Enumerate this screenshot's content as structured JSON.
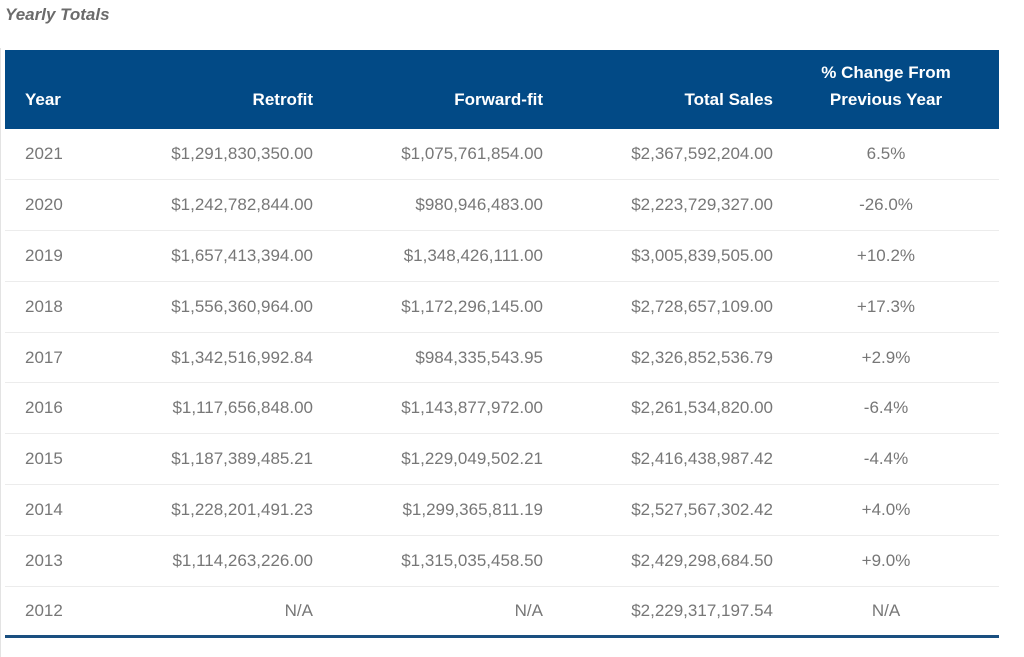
{
  "title": "Yearly Totals",
  "table": {
    "headers": {
      "year": "Year",
      "retrofit": "Retrofit",
      "forward_fit": "Forward-fit",
      "total_sales": "Total Sales",
      "pct_change_line1": "% Change From",
      "pct_change_line2": "Previous Year"
    },
    "rows": [
      {
        "year": "2021",
        "retrofit": "$1,291,830,350.00",
        "forward_fit": "$1,075,761,854.00",
        "total_sales": "$2,367,592,204.00",
        "pct_change": "6.5%"
      },
      {
        "year": "2020",
        "retrofit": "$1,242,782,844.00",
        "forward_fit": "$980,946,483.00",
        "total_sales": "$2,223,729,327.00",
        "pct_change": "-26.0%"
      },
      {
        "year": "2019",
        "retrofit": "$1,657,413,394.00",
        "forward_fit": "$1,348,426,111.00",
        "total_sales": "$3,005,839,505.00",
        "pct_change": "+10.2%"
      },
      {
        "year": "2018",
        "retrofit": "$1,556,360,964.00",
        "forward_fit": "$1,172,296,145.00",
        "total_sales": "$2,728,657,109.00",
        "pct_change": "+17.3%"
      },
      {
        "year": "2017",
        "retrofit": "$1,342,516,992.84",
        "forward_fit": "$984,335,543.95",
        "total_sales": "$2,326,852,536.79",
        "pct_change": "+2.9%"
      },
      {
        "year": "2016",
        "retrofit": "$1,117,656,848.00",
        "forward_fit": "$1,143,877,972.00",
        "total_sales": "$2,261,534,820.00",
        "pct_change": "-6.4%"
      },
      {
        "year": "2015",
        "retrofit": "$1,187,389,485.21",
        "forward_fit": "$1,229,049,502.21",
        "total_sales": "$2,416,438,987.42",
        "pct_change": "-4.4%"
      },
      {
        "year": "2014",
        "retrofit": "$1,228,201,491.23",
        "forward_fit": "$1,299,365,811.19",
        "total_sales": "$2,527,567,302.42",
        "pct_change": "+4.0%"
      },
      {
        "year": "2013",
        "retrofit": "$1,114,263,226.00",
        "forward_fit": "$1,315,035,458.50",
        "total_sales": "$2,429,298,684.50",
        "pct_change": "+9.0%"
      },
      {
        "year": "2012",
        "retrofit": "N/A",
        "forward_fit": "N/A",
        "total_sales": "$2,229,317,197.54",
        "pct_change": "N/A"
      }
    ]
  }
}
